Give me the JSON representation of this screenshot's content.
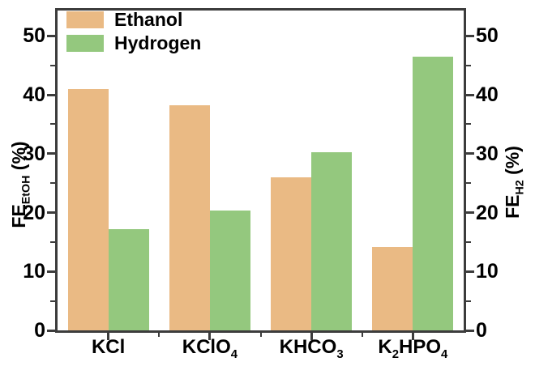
{
  "chart_data": {
    "type": "bar",
    "title": "",
    "categories": [
      {
        "parts": [
          {
            "text": "KCl"
          }
        ]
      },
      {
        "parts": [
          {
            "text": "KClO"
          },
          {
            "sub": "4"
          }
        ]
      },
      {
        "parts": [
          {
            "text": "KHCO"
          },
          {
            "sub": "3"
          }
        ]
      },
      {
        "parts": [
          {
            "text": "K"
          },
          {
            "sub": "2"
          },
          {
            "text": "HPO"
          },
          {
            "sub": "4"
          }
        ]
      }
    ],
    "series": [
      {
        "name": "Ethanol",
        "color": "#eaba84",
        "values": [
          41.0,
          38.2,
          26.0,
          14.2
        ]
      },
      {
        "name": "Hydrogen",
        "color": "#94c87e",
        "values": [
          17.2,
          20.3,
          30.3,
          46.5
        ]
      }
    ],
    "left_axis": {
      "title_prefix": "FE",
      "title_sub": "EtOH",
      "title_suffix": " (%)",
      "ticks": [
        0,
        10,
        20,
        30,
        40,
        50
      ],
      "minor_ticks": [
        5,
        15,
        25,
        35,
        45
      ]
    },
    "right_axis": {
      "title_prefix": "FE",
      "title_sub": "H2",
      "title_suffix": " (%)",
      "ticks": [
        0,
        10,
        20,
        30,
        40,
        50
      ],
      "minor_ticks": [
        5,
        15,
        25,
        35,
        45
      ]
    },
    "ylim": [
      0,
      54.3
    ],
    "grid": false,
    "legend_position": "top-left"
  }
}
